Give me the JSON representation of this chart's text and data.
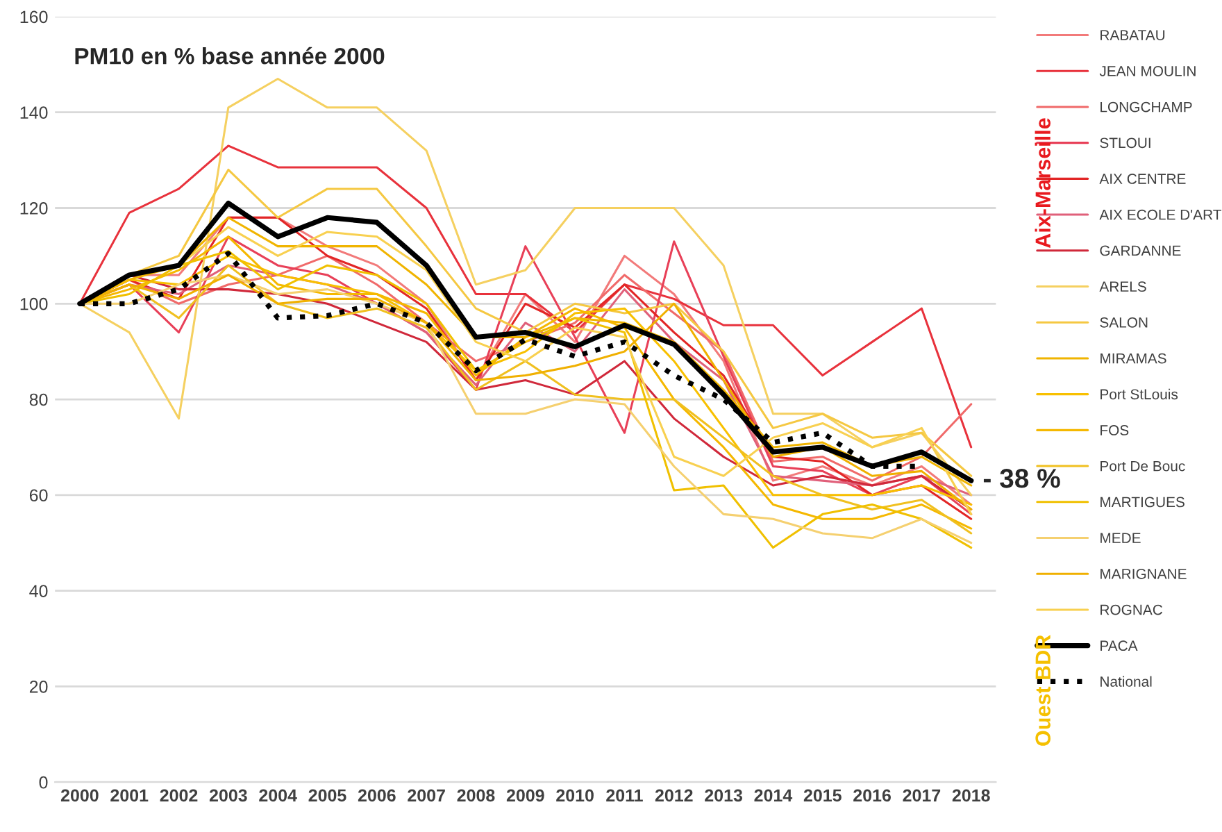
{
  "chart_data": {
    "type": "line",
    "title": "PM10 en % base année 2000",
    "categories": [
      "2000",
      "2001",
      "2002",
      "2003",
      "2004",
      "2005",
      "2006",
      "2007",
      "2008",
      "2009",
      "2010",
      "2011",
      "2012",
      "2013",
      "2014",
      "2015",
      "2016",
      "2017",
      "2018"
    ],
    "series": [
      {
        "name": "RABATAU",
        "color": "#f27a7a",
        "values": [
          100,
          106,
          106,
          118,
          118,
          112,
          108,
          100,
          84,
          102,
          92,
          110,
          102,
          88,
          63,
          66,
          62,
          66,
          58
        ]
      },
      {
        "name": "JEAN MOULIN",
        "color": "#e8323c",
        "values": [
          100,
          119,
          124,
          133,
          128.5,
          128.5,
          128.5,
          120,
          102,
          102,
          94,
          104,
          101,
          95.5,
          95.5,
          85,
          92,
          99,
          70
        ]
      },
      {
        "name": "LONGCHAMP",
        "color": "#f06a6a",
        "values": [
          100,
          105,
          100,
          104,
          106,
          110,
          104,
          96,
          88,
          92,
          96,
          106,
          98,
          90,
          67,
          68,
          63,
          68,
          79
        ]
      },
      {
        "name": "STLOUI",
        "color": "#e84058",
        "values": [
          100,
          104,
          94,
          114,
          108,
          106,
          100,
          94,
          82,
          112,
          93,
          73,
          113,
          89,
          66,
          65,
          60,
          64,
          56
        ]
      },
      {
        "name": "AIX CENTRE",
        "color": "#e22626",
        "values": [
          100,
          105,
          101,
          118,
          118,
          110,
          106,
          99,
          84,
          100,
          95,
          104,
          94,
          85,
          68,
          67,
          60,
          62,
          55
        ]
      },
      {
        "name": "AIX ECOLE D'ART",
        "color": "#e0607a",
        "values": [
          100,
          104,
          102,
          108,
          106,
          104,
          100,
          94,
          83,
          96,
          90,
          103,
          92,
          84,
          64,
          63,
          62,
          64,
          60
        ]
      },
      {
        "name": "GARDANNE",
        "color": "#d0283a",
        "values": [
          100,
          106,
          103,
          103,
          102,
          100,
          96,
          92,
          82,
          84,
          81,
          88,
          76,
          68,
          62,
          64,
          62,
          64,
          57
        ]
      },
      {
        "name": "ARELS",
        "color": "#f5d060",
        "values": [
          100,
          94,
          76,
          141,
          147,
          141,
          141,
          132,
          104,
          107,
          120,
          120,
          120,
          108,
          77,
          77,
          70,
          73,
          60
        ]
      },
      {
        "name": "SALON",
        "color": "#f5c842",
        "values": [
          100,
          106,
          110,
          128,
          118,
          124,
          124,
          112,
          99,
          94,
          100,
          98,
          100,
          90,
          74,
          77,
          72,
          73,
          64
        ]
      },
      {
        "name": "MIRAMAS",
        "color": "#f0b400",
        "values": [
          100,
          105,
          108,
          118,
          112,
          112,
          112,
          104,
          93,
          93,
          97,
          96,
          92,
          82,
          70,
          71,
          66,
          68,
          62
        ]
      },
      {
        "name": "Port StLouis",
        "color": "#f8c000",
        "values": [
          100,
          105,
          104,
          110,
          106,
          104,
          102,
          96,
          86,
          90,
          98,
          99,
          88,
          74,
          60,
          60,
          60,
          62,
          58
        ]
      },
      {
        "name": "FOS",
        "color": "#f5b800",
        "values": [
          100,
          103,
          107,
          114,
          104,
          102,
          102,
          98,
          85,
          93,
          99,
          95,
          80,
          70,
          58,
          55,
          55,
          58,
          53
        ]
      },
      {
        "name": "Port De Bouc",
        "color": "#f0c020",
        "values": [
          100,
          104,
          97,
          108,
          100,
          97,
          99,
          95,
          82,
          88,
          81,
          80,
          80,
          72,
          64,
          60,
          57,
          59,
          52
        ]
      },
      {
        "name": "MARTIGUES",
        "color": "#f0c000",
        "values": [
          100,
          102,
          108,
          111,
          103,
          108,
          106,
          100,
          86,
          92,
          97,
          94,
          61,
          62,
          49,
          56,
          58,
          55,
          49
        ]
      },
      {
        "name": "MEDE",
        "color": "#f5d070",
        "values": [
          100,
          100,
          104,
          106,
          102,
          103,
          100,
          96,
          77,
          77,
          80,
          79,
          66,
          56,
          55,
          52,
          51,
          55,
          50
        ]
      },
      {
        "name": "MARIGNANE",
        "color": "#f0b000",
        "values": [
          100,
          104,
          101,
          106,
          100,
          101,
          101,
          96,
          84,
          85,
          87,
          90,
          100,
          84,
          68,
          70,
          64,
          65,
          57
        ]
      },
      {
        "name": "ROGNAC",
        "color": "#f8d050",
        "values": [
          100,
          106,
          108,
          116,
          110,
          115,
          114,
          107,
          92,
          88,
          95,
          93,
          68,
          64,
          72,
          75,
          70,
          74,
          56
        ]
      },
      {
        "name": "PACA",
        "color": "#000000",
        "values": [
          100,
          106,
          108,
          121,
          114,
          118,
          117,
          108,
          93,
          94,
          91,
          95.5,
          91.5,
          81,
          69,
          70,
          66,
          69,
          63
        ]
      },
      {
        "name": "National",
        "color": "#000000",
        "line_style": "dotted",
        "values": [
          100,
          100,
          103,
          110.5,
          97,
          97.5,
          100,
          96,
          86,
          92.5,
          89,
          92,
          85,
          80,
          71,
          73,
          66,
          66,
          null
        ]
      }
    ],
    "annotations": [
      {
        "text": "- 38 %",
        "x": "2018",
        "y": 63
      },
      "Aix-Marseille",
      "Ouest BDR"
    ],
    "ylim": [
      0,
      160
    ],
    "yticks": [
      0,
      20,
      40,
      60,
      80,
      100,
      120,
      140,
      160
    ],
    "grid": "y",
    "legend": "right",
    "line_style": "solid"
  }
}
